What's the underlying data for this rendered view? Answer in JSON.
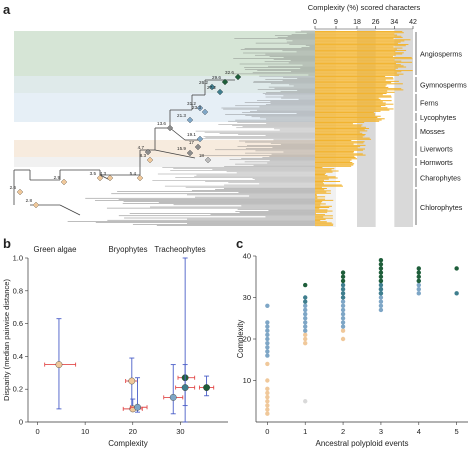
{
  "panels": {
    "a": {
      "label": "a"
    },
    "b": {
      "label": "b"
    },
    "c": {
      "label": "c"
    }
  },
  "colors": {
    "angiosperm_band": "#cfe0cf",
    "gymno_band": "#d9e6e6",
    "fern_band": "#e2ecf4",
    "liver_band": "#f6e8d8",
    "hornwort_band": "#eeeeee",
    "bar_orange": "#f2b430",
    "bar_grey": "#d9d9d9",
    "green_dark": "#1e5e3a",
    "teal": "#3f7e8e",
    "blue_light": "#7ea6c6",
    "orange_pale": "#f0c89a",
    "error_blue": "#4a5ec8",
    "error_red": "#e34b4b",
    "tree_line": "#555555"
  },
  "chart_data": [
    {
      "panel": "a",
      "type": "bar",
      "title": "Complexity (%) scored characters",
      "xticks": [
        "0",
        "9",
        "18",
        "26",
        "34",
        "42"
      ],
      "xlim": [
        0,
        42
      ],
      "tick_values": [
        0,
        9,
        18,
        26,
        34,
        42
      ],
      "clades": [
        "Angiosperms",
        "Gymnosperms",
        "Ferns",
        "Lycophytes",
        "Mosses",
        "Liverworts",
        "Hornworts",
        "Charophytes",
        "Chlorophytes"
      ],
      "clade_bar_ranges": {
        "Angiosperms": [
          33,
          42
        ],
        "Gymnosperms": [
          30,
          38
        ],
        "Ferns": [
          27,
          34
        ],
        "Lycophytes": [
          25,
          30
        ],
        "Mosses": [
          16,
          25
        ],
        "Liverworts": [
          15,
          22
        ],
        "Hornworts": [
          15,
          19
        ],
        "Charophytes": [
          2,
          12
        ],
        "Chlorophytes": [
          0,
          8
        ]
      },
      "node_values": [
        "32.6",
        "29.6",
        "26.2",
        "27.2",
        "31.2",
        "21.3",
        "23.3",
        "19.1",
        "17",
        "15.9",
        "13.6",
        "4.7",
        "8.3",
        "4.3",
        "3.5",
        "5.4",
        "2.9",
        "2.8",
        "2.6",
        "18"
      ]
    },
    {
      "panel": "b",
      "type": "scatter",
      "xlabel": "Complexity",
      "ylabel": "Disparity (median pairwise distance)",
      "xlim": [
        -2,
        40
      ],
      "ylim": [
        0,
        1.0
      ],
      "xticks": [
        "0",
        "10",
        "20",
        "30"
      ],
      "yticks": [
        "0",
        "0.2",
        "0.4",
        "0.6",
        "0.8",
        "1.0"
      ],
      "group_labels": [
        "Green algae",
        "Bryophytes",
        "Tracheophytes"
      ],
      "points": [
        {
          "x": 4.5,
          "y": 0.35,
          "ylo": 0.08,
          "yhi": 0.63,
          "xlo": 1.5,
          "xhi": 8.0,
          "color": "#f0c89a"
        },
        {
          "x": 19.8,
          "y": 0.25,
          "ylo": 0.08,
          "yhi": 0.39,
          "xlo": 18.5,
          "xhi": 21.0,
          "color": "#f0c89a"
        },
        {
          "x": 20.0,
          "y": 0.08,
          "ylo": 0.07,
          "yhi": 0.14,
          "xlo": 18.0,
          "xhi": 22.0,
          "color": "#f0c89a"
        },
        {
          "x": 21.0,
          "y": 0.09,
          "ylo": 0.06,
          "yhi": 0.27,
          "xlo": 19.5,
          "xhi": 23.0,
          "color": "#7ea6c6"
        },
        {
          "x": 28.5,
          "y": 0.15,
          "ylo": 0.05,
          "yhi": 0.35,
          "xlo": 26.5,
          "xhi": 30.5,
          "color": "#7ea6c6"
        },
        {
          "x": 31.0,
          "y": 0.27,
          "ylo": 0.0,
          "yhi": 1.0,
          "xlo": 29.5,
          "xhi": 33.0,
          "color": "#1e5e3a"
        },
        {
          "x": 31.0,
          "y": 0.21,
          "ylo": 0.1,
          "yhi": 0.35,
          "xlo": 29.0,
          "xhi": 33.0,
          "color": "#3f7e8e"
        },
        {
          "x": 35.5,
          "y": 0.21,
          "ylo": 0.16,
          "yhi": 0.28,
          "xlo": 34.0,
          "xhi": 37.0,
          "color": "#1e5e3a"
        }
      ]
    },
    {
      "panel": "c",
      "type": "scatter",
      "xlabel": "Ancestral polyploid events",
      "ylabel": "Complexity",
      "xlim": [
        -0.3,
        5.3
      ],
      "ylim": [
        0,
        40
      ],
      "xticks": [
        "0",
        "1",
        "2",
        "3",
        "4",
        "5"
      ],
      "yticks": [
        "10",
        "20",
        "30",
        "40"
      ],
      "series": [
        {
          "x": 0,
          "y": [
            2,
            3,
            4,
            5,
            6,
            7,
            8,
            10,
            14
          ],
          "color": "#f0c89a"
        },
        {
          "x": 0,
          "y": [
            16,
            17,
            18,
            19,
            20,
            21,
            22,
            23,
            24
          ],
          "color": "#7ea6c6"
        },
        {
          "x": 0,
          "y": [
            28
          ],
          "color": "#7ea6c6"
        },
        {
          "x": 1,
          "y": [
            5
          ],
          "color": "#d9d9d9"
        },
        {
          "x": 1,
          "y": [
            19,
            20,
            21
          ],
          "color": "#f0c89a"
        },
        {
          "x": 1,
          "y": [
            22,
            23,
            24,
            25,
            26,
            27,
            28
          ],
          "color": "#7ea6c6"
        },
        {
          "x": 1,
          "y": [
            29,
            30
          ],
          "color": "#3f7e8e"
        },
        {
          "x": 1,
          "y": [
            33
          ],
          "color": "#1e5e3a"
        },
        {
          "x": 2,
          "y": [
            20,
            22
          ],
          "color": "#f0c89a"
        },
        {
          "x": 2,
          "y": [
            23,
            24,
            25,
            26,
            27,
            28,
            29,
            30
          ],
          "color": "#7ea6c6"
        },
        {
          "x": 2,
          "y": [
            30,
            31,
            32,
            33
          ],
          "color": "#3f7e8e"
        },
        {
          "x": 2,
          "y": [
            34,
            35,
            36
          ],
          "color": "#1e5e3a"
        },
        {
          "x": 3,
          "y": [
            27,
            28,
            29,
            30,
            31,
            32
          ],
          "color": "#7ea6c6"
        },
        {
          "x": 3,
          "y": [
            31,
            32,
            33,
            34
          ],
          "color": "#3f7e8e"
        },
        {
          "x": 3,
          "y": [
            34,
            35,
            36,
            37,
            38,
            39
          ],
          "color": "#1e5e3a"
        },
        {
          "x": 4,
          "y": [
            31,
            32,
            33,
            34
          ],
          "color": "#7ea6c6"
        },
        {
          "x": 4,
          "y": [
            34,
            35,
            36,
            37
          ],
          "color": "#1e5e3a"
        },
        {
          "x": 5,
          "y": [
            31
          ],
          "color": "#3f7e8e"
        },
        {
          "x": 5,
          "y": [
            37
          ],
          "color": "#1e5e3a"
        }
      ]
    }
  ]
}
